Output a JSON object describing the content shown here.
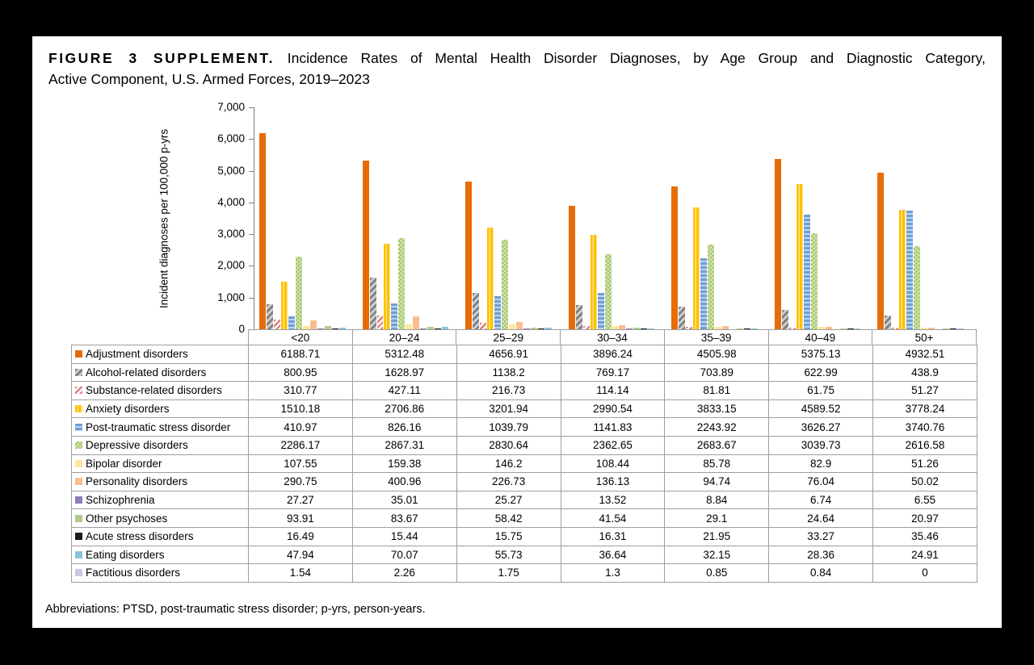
{
  "title": {
    "tag": "FIGURE 3 SUPPLEMENT.",
    "line1_rest": "Incidence Rates of Mental Health Disorder Diagnoses, by Age Group and Diagnostic Category,",
    "line2": "Active Component, U.S. Armed Forces, 2019–2023"
  },
  "footer": "Abbreviations: PTSD, post-traumatic stress disorder; p-yrs, person-years.",
  "chart_data": {
    "type": "bar",
    "title": "Incidence Rates of Mental Health Disorder Diagnoses, by Age Group and Diagnostic Category, Active Component, U.S. Armed Forces, 2019–2023",
    "xlabel": "",
    "ylabel": "Incident diagnoses per 100,000 p-yrs",
    "ylim": [
      0,
      7000
    ],
    "yticks": [
      "7,000",
      "6,000",
      "5,000",
      "4,000",
      "3,000",
      "2,000",
      "1,000",
      "0"
    ],
    "grid": false,
    "legend_position": "table-left",
    "categories": [
      "<20",
      "20–24",
      "25–29",
      "30–34",
      "35–39",
      "40–49",
      "50+"
    ],
    "series": [
      {
        "name": "Adjustment disorders",
        "pattern": "solid",
        "color": "#E66C09",
        "values": [
          6188.71,
          5312.48,
          4656.91,
          3896.24,
          4505.98,
          5375.13,
          4932.51
        ]
      },
      {
        "name": "Alcohol-related disorders",
        "pattern": "diagonal-gray",
        "color": "#7F7F7F",
        "values": [
          800.95,
          1628.97,
          1138.2,
          769.17,
          703.89,
          622.99,
          438.9
        ]
      },
      {
        "name": "Substance-related disorders",
        "pattern": "diagonal-pink",
        "color": "#DD7E7E",
        "values": [
          310.77,
          427.11,
          216.73,
          114.14,
          81.81,
          61.75,
          51.27
        ]
      },
      {
        "name": "Anxiety disorders",
        "pattern": "vertical-gold",
        "color": "#FFC000",
        "values": [
          1510.18,
          2706.86,
          3201.94,
          2990.54,
          3833.15,
          4589.52,
          3778.24
        ]
      },
      {
        "name": "Post-traumatic stress disorder",
        "pattern": "horizontal-blue",
        "color": "#6F9FD8",
        "values": [
          410.97,
          826.16,
          1039.79,
          1141.83,
          2243.92,
          3626.27,
          3740.76
        ]
      },
      {
        "name": "Depressive disorders",
        "pattern": "checker-green",
        "color": "#A2C562",
        "values": [
          2286.17,
          2867.31,
          2830.64,
          2362.65,
          2683.67,
          3039.73,
          2616.58
        ]
      },
      {
        "name": "Bipolar disorder",
        "pattern": "solid",
        "color": "#FFE699",
        "values": [
          107.55,
          159.38,
          146.2,
          108.44,
          85.78,
          82.9,
          51.26
        ]
      },
      {
        "name": "Personality disorders",
        "pattern": "solid",
        "color": "#F9BE8F",
        "values": [
          290.75,
          400.96,
          226.73,
          136.13,
          94.74,
          76.04,
          50.02
        ]
      },
      {
        "name": "Schizophrenia",
        "pattern": "solid",
        "color": "#8D7CB8",
        "values": [
          27.27,
          35.01,
          25.27,
          13.52,
          8.84,
          6.74,
          6.55
        ]
      },
      {
        "name": "Other psychoses",
        "pattern": "solid",
        "color": "#AFCB8B",
        "values": [
          93.91,
          83.67,
          58.42,
          41.54,
          29.1,
          24.64,
          20.97
        ]
      },
      {
        "name": "Acute stress disorders",
        "pattern": "solid",
        "color": "#1A1A1A",
        "values": [
          16.49,
          15.44,
          15.75,
          16.31,
          21.95,
          33.27,
          35.46
        ]
      },
      {
        "name": "Eating disorders",
        "pattern": "solid",
        "color": "#8AC2DE",
        "values": [
          47.94,
          70.07,
          55.73,
          36.64,
          32.15,
          28.36,
          24.91
        ]
      },
      {
        "name": "Factitious disorders",
        "pattern": "solid",
        "color": "#CDC4DF",
        "values": [
          1.54,
          2.26,
          1.75,
          1.3,
          0.85,
          0.84,
          0
        ]
      }
    ]
  }
}
